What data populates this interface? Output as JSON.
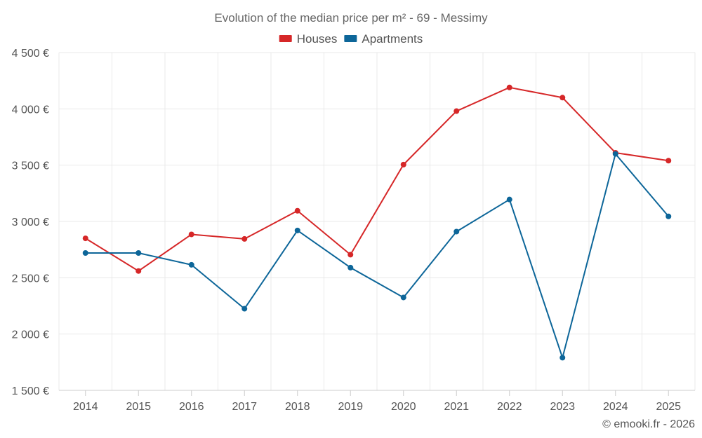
{
  "chart_data": {
    "type": "line",
    "title": "Evolution of the median price per m² - 69 - Messimy",
    "categories": [
      "2014",
      "2015",
      "2016",
      "2017",
      "2018",
      "2019",
      "2020",
      "2021",
      "2022",
      "2023",
      "2024",
      "2025"
    ],
    "series": [
      {
        "name": "Houses",
        "color": "#d62728",
        "values": [
          2850,
          2560,
          2885,
          2845,
          3095,
          2705,
          3505,
          3980,
          4190,
          4100,
          3610,
          3540
        ]
      },
      {
        "name": "Apartments",
        "color": "#0d6699",
        "values": [
          2720,
          2720,
          2615,
          2225,
          2920,
          2590,
          2325,
          2910,
          3195,
          1790,
          3600,
          3045
        ]
      }
    ],
    "ylim": [
      1500,
      4500
    ],
    "yticks": [
      1500,
      2000,
      2500,
      3000,
      3500,
      4000,
      4500
    ],
    "ytick_labels": [
      "1 500 €",
      "2 000 €",
      "2 500 €",
      "3 000 €",
      "3 500 €",
      "4 000 €",
      "4 500 €"
    ],
    "xlabel": "",
    "ylabel": "",
    "grid": true,
    "legend_position": "top-center"
  },
  "credit": "© emooki.fr - 2026"
}
